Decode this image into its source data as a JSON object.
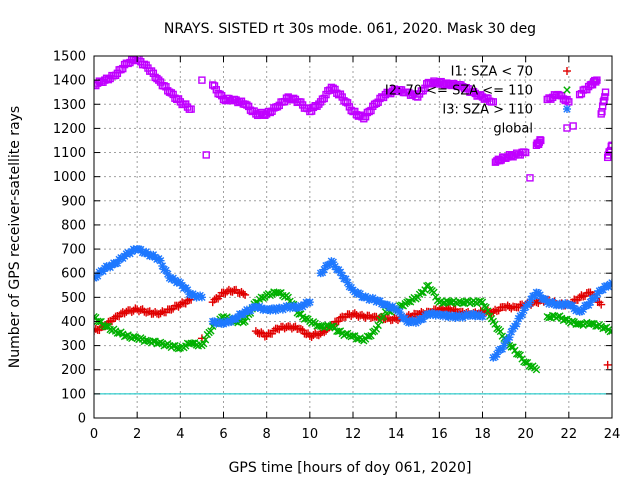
{
  "chart_data": {
    "type": "scatter",
    "title": "NRAYS. SISTED rt 30s mode. 061, 2020. Mask 30 deg",
    "xlabel": "GPS time [hours of doy 061, 2020]",
    "ylabel": "Number of GPS receiver-satellite rays",
    "xlim": [
      0,
      24
    ],
    "ylim": [
      0,
      1500
    ],
    "xticks": [
      0,
      2,
      4,
      6,
      8,
      10,
      12,
      14,
      16,
      18,
      20,
      22,
      24
    ],
    "yticks": [
      0,
      100,
      200,
      300,
      400,
      500,
      600,
      700,
      800,
      900,
      1000,
      1100,
      1200,
      1300,
      1400,
      1500
    ],
    "grid": true,
    "legend_position": "top-right",
    "reference_line": {
      "y": 100,
      "color": "#00c0c0"
    },
    "series": [
      {
        "name": "I1: SZA < 70",
        "marker": "+",
        "color": "#e00000",
        "points": [
          [
            0,
            360
          ],
          [
            0.5,
            380
          ],
          [
            1,
            420
          ],
          [
            1.5,
            440
          ],
          [
            2,
            450
          ],
          [
            2.5,
            440
          ],
          [
            3,
            430
          ],
          [
            3.5,
            450
          ],
          [
            4,
            470
          ],
          [
            4.5,
            490
          ],
          [
            5,
            330
          ],
          [
            5.5,
            480
          ],
          [
            6,
            520
          ],
          [
            6.5,
            530
          ],
          [
            7,
            510
          ],
          [
            7.5,
            360
          ],
          [
            8,
            340
          ],
          [
            8.5,
            370
          ],
          [
            9,
            380
          ],
          [
            9.5,
            370
          ],
          [
            10,
            340
          ],
          [
            10.5,
            350
          ],
          [
            11,
            380
          ],
          [
            11.5,
            420
          ],
          [
            12,
            430
          ],
          [
            12.5,
            420
          ],
          [
            13,
            420
          ],
          [
            13.5,
            410
          ],
          [
            14,
            410
          ],
          [
            14.5,
            420
          ],
          [
            15,
            430
          ],
          [
            15.5,
            440
          ],
          [
            16,
            450
          ],
          [
            16.5,
            450
          ],
          [
            17,
            440
          ],
          [
            17.5,
            430
          ],
          [
            18,
            440
          ],
          [
            18.5,
            440
          ],
          [
            19,
            460
          ],
          [
            19.5,
            460
          ],
          [
            20,
            470
          ],
          [
            20.5,
            480
          ],
          [
            21,
            490
          ],
          [
            21.5,
            470
          ],
          [
            22,
            470
          ],
          [
            22.5,
            500
          ],
          [
            23,
            520
          ],
          [
            23.5,
            470
          ],
          [
            23.8,
            220
          ]
        ]
      },
      {
        "name": "I2: 70 <= SZA <= 110",
        "marker": "x",
        "color": "#00b000",
        "points": [
          [
            0,
            420
          ],
          [
            0.5,
            380
          ],
          [
            1,
            360
          ],
          [
            1.5,
            340
          ],
          [
            2,
            330
          ],
          [
            2.5,
            320
          ],
          [
            3,
            310
          ],
          [
            3.5,
            300
          ],
          [
            4,
            290
          ],
          [
            4.5,
            310
          ],
          [
            5,
            300
          ],
          [
            5.5,
            380
          ],
          [
            6,
            420
          ],
          [
            6.5,
            400
          ],
          [
            7,
            400
          ],
          [
            7.5,
            480
          ],
          [
            8,
            510
          ],
          [
            8.5,
            520
          ],
          [
            9,
            500
          ],
          [
            9.5,
            430
          ],
          [
            10,
            400
          ],
          [
            10.5,
            380
          ],
          [
            11,
            380
          ],
          [
            11.5,
            350
          ],
          [
            12,
            340
          ],
          [
            12.5,
            320
          ],
          [
            13,
            360
          ],
          [
            13.5,
            440
          ],
          [
            14,
            450
          ],
          [
            14.5,
            480
          ],
          [
            15,
            500
          ],
          [
            15.5,
            550
          ],
          [
            16,
            480
          ],
          [
            16.5,
            480
          ],
          [
            17,
            480
          ],
          [
            17.5,
            480
          ],
          [
            18,
            480
          ],
          [
            18.5,
            400
          ],
          [
            19,
            330
          ],
          [
            19.5,
            280
          ],
          [
            20,
            230
          ],
          [
            20.5,
            200
          ],
          [
            21,
            420
          ],
          [
            21.5,
            420
          ],
          [
            22,
            400
          ],
          [
            22.5,
            390
          ],
          [
            23,
            390
          ],
          [
            23.5,
            380
          ],
          [
            24,
            360
          ]
        ]
      },
      {
        "name": "I3: SZA > 110",
        "marker": "*",
        "color": "#1e78ff",
        "points": [
          [
            0,
            580
          ],
          [
            0.5,
            620
          ],
          [
            1,
            640
          ],
          [
            1.5,
            680
          ],
          [
            2,
            700
          ],
          [
            2.5,
            680
          ],
          [
            3,
            660
          ],
          [
            3.5,
            580
          ],
          [
            4,
            560
          ],
          [
            4.5,
            510
          ],
          [
            5,
            500
          ],
          [
            5.5,
            400
          ],
          [
            6,
            390
          ],
          [
            6.5,
            410
          ],
          [
            7,
            440
          ],
          [
            7.5,
            460
          ],
          [
            8,
            450
          ],
          [
            8.5,
            450
          ],
          [
            9,
            460
          ],
          [
            9.5,
            460
          ],
          [
            10,
            480
          ],
          [
            10.5,
            600
          ],
          [
            11,
            650
          ],
          [
            11.5,
            590
          ],
          [
            12,
            530
          ],
          [
            12.5,
            500
          ],
          [
            13,
            490
          ],
          [
            13.5,
            470
          ],
          [
            14,
            450
          ],
          [
            14.5,
            400
          ],
          [
            15,
            400
          ],
          [
            15.5,
            430
          ],
          [
            16,
            430
          ],
          [
            16.5,
            420
          ],
          [
            17,
            420
          ],
          [
            17.5,
            430
          ],
          [
            18,
            420
          ],
          [
            18.5,
            250
          ],
          [
            19,
            300
          ],
          [
            19.5,
            380
          ],
          [
            20,
            460
          ],
          [
            20.5,
            520
          ],
          [
            21,
            480
          ],
          [
            21.5,
            470
          ],
          [
            22,
            470
          ],
          [
            22.5,
            440
          ],
          [
            23,
            480
          ],
          [
            23.5,
            530
          ],
          [
            24,
            560
          ]
        ]
      },
      {
        "name": "global",
        "marker": "square",
        "color": "#c000ff",
        "points": [
          [
            0,
            1380
          ],
          [
            0.5,
            1400
          ],
          [
            1,
            1420
          ],
          [
            1.5,
            1470
          ],
          [
            2,
            1490
          ],
          [
            2.5,
            1450
          ],
          [
            3,
            1400
          ],
          [
            3.5,
            1350
          ],
          [
            4,
            1310
          ],
          [
            4.5,
            1280
          ],
          [
            5,
            1400
          ],
          [
            5.2,
            1090
          ],
          [
            5.5,
            1380
          ],
          [
            6,
            1320
          ],
          [
            6.5,
            1320
          ],
          [
            7,
            1300
          ],
          [
            7.5,
            1260
          ],
          [
            8,
            1260
          ],
          [
            8.5,
            1290
          ],
          [
            9,
            1330
          ],
          [
            9.5,
            1310
          ],
          [
            10,
            1270
          ],
          [
            10.5,
            1310
          ],
          [
            11,
            1370
          ],
          [
            11.5,
            1330
          ],
          [
            12,
            1270
          ],
          [
            12.5,
            1240
          ],
          [
            13,
            1300
          ],
          [
            13.5,
            1340
          ],
          [
            14,
            1360
          ],
          [
            14.5,
            1350
          ],
          [
            15,
            1330
          ],
          [
            15.5,
            1390
          ],
          [
            16,
            1390
          ],
          [
            16.5,
            1380
          ],
          [
            17,
            1380
          ],
          [
            17.5,
            1350
          ],
          [
            18,
            1330
          ],
          [
            18.5,
            1310
          ],
          [
            18.6,
            1060
          ],
          [
            19,
            1080
          ],
          [
            19.5,
            1090
          ],
          [
            20,
            1100
          ],
          [
            20.2,
            995
          ],
          [
            20.5,
            1130
          ],
          [
            20.7,
            1150
          ],
          [
            21,
            1320
          ],
          [
            21.5,
            1340
          ],
          [
            22,
            1310
          ],
          [
            22.2,
            1210
          ],
          [
            22.5,
            1340
          ],
          [
            23,
            1380
          ],
          [
            23.3,
            1400
          ],
          [
            23.5,
            1260
          ],
          [
            23.7,
            1350
          ],
          [
            23.8,
            1080
          ],
          [
            24,
            1130
          ]
        ]
      }
    ]
  }
}
